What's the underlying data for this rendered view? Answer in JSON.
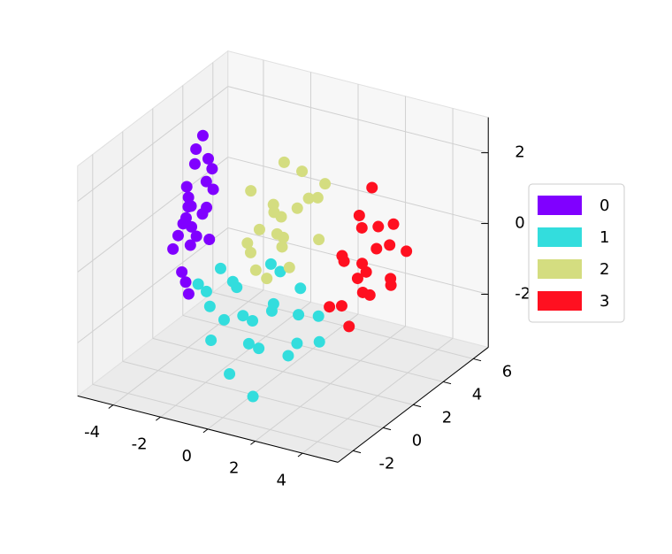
{
  "chart_data": {
    "type": "scatter3d",
    "xlim": [
      -5.5,
      5.5
    ],
    "ylim": [
      -3,
      7
    ],
    "zlim": [
      -3.5,
      3
    ],
    "xticks": [
      -4,
      -2,
      0,
      2,
      4
    ],
    "yticks": [
      -2,
      0,
      2,
      4,
      6
    ],
    "zticks": [
      -2,
      0,
      2
    ],
    "grid": true,
    "legend": "right",
    "series": [
      {
        "name": "0",
        "color": "#8000ff",
        "x": [
          -4.5,
          -4.2,
          -4.8,
          -4.0,
          -4.6,
          -4.3,
          -5.0,
          -4.4,
          -3.9,
          -4.7,
          -4.1,
          -4.5,
          -4.9,
          -4.2,
          -4.6,
          -3.8,
          -4.4,
          -4.3,
          -4.7,
          -4.0,
          -4.5,
          -4.1,
          -4.8,
          -4.3
        ],
        "y": [
          3.0,
          2.5,
          3.4,
          3.2,
          2.8,
          3.8,
          2.9,
          2.2,
          3.5,
          3.1,
          2.7,
          3.3,
          2.4,
          3.9,
          2.6,
          2.9,
          3.6,
          2.3,
          3.0,
          3.4,
          2.8,
          3.1,
          3.7,
          2.5
        ],
        "z": [
          -0.5,
          0.3,
          -1.2,
          0.8,
          -0.2,
          1.2,
          -0.8,
          -1.5,
          0.5,
          0.0,
          -0.6,
          1.6,
          -1.0,
          0.9,
          -0.3,
          0.2,
          1.9,
          -1.8,
          0.6,
          -0.9,
          0.4,
          -0.1,
          1.0,
          -2.2
        ]
      },
      {
        "name": "1",
        "color": "#33dddd",
        "x": [
          0.3,
          -1.0,
          1.2,
          -2.0,
          0.8,
          2.0,
          -0.5,
          1.5,
          -1.5,
          0.0,
          2.5,
          -2.5,
          0.6,
          1.0,
          -0.8,
          1.8,
          -1.2,
          0.4,
          2.2,
          -0.2,
          1.4,
          -1.8,
          0.9,
          3.0
        ],
        "y": [
          -0.5,
          0.5,
          -1.5,
          1.0,
          0.0,
          -0.8,
          -2.0,
          0.8,
          -0.5,
          1.2,
          -1.0,
          0.3,
          -2.5,
          -0.2,
          0.6,
          0.2,
          -1.2,
          -0.9,
          0.9,
          -1.6,
          -2.2,
          1.5,
          0.4,
          -0.3
        ],
        "z": [
          -1.2,
          -0.8,
          -1.5,
          -0.6,
          -1.0,
          -1.8,
          -1.4,
          -0.5,
          -1.1,
          -0.2,
          -1.3,
          -0.9,
          -2.0,
          -0.7,
          -1.6,
          -1.0,
          -0.4,
          -1.7,
          -1.2,
          -0.9,
          -2.6,
          -1.1,
          0.0,
          -1.4
        ]
      },
      {
        "name": "2",
        "color": "#d4dd80",
        "x": [
          -1.2,
          -0.5,
          -2.0,
          -1.0,
          0.2,
          -1.8,
          -0.8,
          -1.5,
          0.5,
          -2.5,
          -1.1,
          -0.3,
          -1.6,
          -0.9,
          -2.2,
          0.0,
          -1.4,
          -0.6,
          -1.9,
          -1.0
        ],
        "y": [
          3.5,
          4.5,
          3.0,
          2.5,
          4.0,
          4.2,
          3.2,
          2.8,
          3.6,
          3.8,
          5.0,
          2.9,
          4.6,
          3.3,
          3.1,
          4.8,
          2.4,
          3.9,
          4.4,
          3.6
        ],
        "z": [
          -0.3,
          0.5,
          -0.8,
          -1.2,
          0.8,
          0.2,
          -0.5,
          0.0,
          -0.2,
          0.6,
          1.0,
          -0.9,
          1.3,
          0.3,
          -0.6,
          0.9,
          -1.0,
          0.4,
          -0.1,
          -0.4
        ]
      },
      {
        "name": "3",
        "color": "#ff1020",
        "x": [
          3.2,
          2.5,
          3.8,
          2.8,
          4.0,
          3.0,
          3.5,
          2.2,
          3.9,
          2.7,
          3.3,
          4.2,
          2.9,
          3.6,
          2.4,
          3.1,
          3.7,
          2.6,
          3.4,
          4.1
        ],
        "y": [
          2.5,
          2.0,
          3.2,
          1.5,
          2.8,
          3.5,
          1.8,
          2.6,
          2.2,
          3.0,
          1.2,
          3.6,
          2.4,
          1.6,
          3.3,
          2.9,
          2.1,
          1.0,
          4.0,
          2.7
        ],
        "z": [
          -0.3,
          0.2,
          -0.8,
          -1.0,
          0.5,
          0.0,
          -0.6,
          -0.2,
          1.2,
          0.7,
          -1.4,
          0.1,
          -0.5,
          0.3,
          0.9,
          -1.1,
          2.3,
          -0.9,
          0.6,
          -0.4
        ]
      }
    ]
  }
}
